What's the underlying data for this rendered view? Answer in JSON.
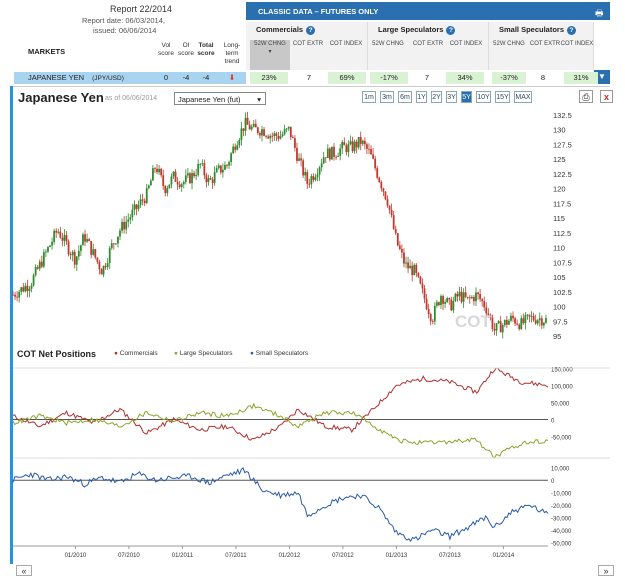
{
  "report": {
    "title": "Report 22/2014",
    "date": "Report date: 06/03/2014,",
    "issued": "issued: 06/06/2014"
  },
  "markets_header": "MARKETS",
  "score_headers": {
    "vol": "Vol score",
    "oi": "OI score",
    "total": "Total score",
    "trend": "Long-term trend"
  },
  "classic_title": "CLASSIC DATA – FUTURES ONLY",
  "groups": [
    {
      "name": "Commercials",
      "cols": [
        "52W CHNG",
        "COT EXTR",
        "COT INDEX"
      ]
    },
    {
      "name": "Large Speculators",
      "cols": [
        "52W CHNG",
        "COT EXTR",
        "COT INDEX"
      ]
    },
    {
      "name": "Small Speculators",
      "cols": [
        "52W CHNG",
        "COT EXTR",
        "COT INDEX"
      ]
    }
  ],
  "row": {
    "market": "JAPANESE YEN",
    "symbol": "(JPY/USD)",
    "vol": "0",
    "oi": "-4",
    "total": "-4",
    "values": [
      "23%",
      "7",
      "69%",
      "-17%",
      "7",
      "34%",
      "-37%",
      "8",
      "31%"
    ]
  },
  "chart_header": {
    "title": "Japanese Yen",
    "as_of": "as of 06/06/2014",
    "select": "Japanese Yen (fut)",
    "ranges": [
      "1m",
      "3m",
      "6m",
      "1Y",
      "2Y",
      "3Y",
      "5Y",
      "10Y",
      "15Y",
      "MAX"
    ],
    "active_range": "5Y",
    "close": "x"
  },
  "cot_title": "COT Net Positions",
  "legend": [
    "Commercials",
    "Large Speculators",
    "Small Speculators"
  ],
  "colors": {
    "commercials": "#b03030",
    "large": "#8aa52c",
    "small": "#2a5aa8",
    "up": "#2e8b2e",
    "down": "#c0392b"
  },
  "watermark": "COT",
  "nav": {
    "prev": "«",
    "next": "»"
  },
  "chart_data": [
    {
      "type": "candlestick",
      "title": "Japanese Yen",
      "ylim": [
        95,
        133
      ],
      "yticks": [
        95,
        97.5,
        100,
        102.5,
        105,
        107.5,
        110,
        112.5,
        115,
        117.5,
        120,
        122.5,
        125,
        127.5,
        130,
        132.5
      ],
      "ytick_labels": [
        "95",
        "97.5",
        "100",
        "102.5",
        "105",
        "107.5",
        "110",
        "112.5",
        "115",
        "117.5",
        "120",
        "122.5",
        "125",
        "127.5",
        "130",
        "132.5"
      ],
      "x_start": "2009-06",
      "x_end": "2014-06",
      "close_path": [
        [
          "2009-06",
          102
        ],
        [
          "2009-08",
          104
        ],
        [
          "2009-10",
          110
        ],
        [
          "2009-11",
          113
        ],
        [
          "2010-01",
          108
        ],
        [
          "2010-02",
          112
        ],
        [
          "2010-04",
          106
        ],
        [
          "2010-05",
          110
        ],
        [
          "2010-06",
          113
        ],
        [
          "2010-08",
          117
        ],
        [
          "2010-09",
          119
        ],
        [
          "2010-10",
          124
        ],
        [
          "2010-11",
          120
        ],
        [
          "2010-12",
          122
        ],
        [
          "2011-01",
          121
        ],
        [
          "2011-02",
          122
        ],
        [
          "2011-03",
          124
        ],
        [
          "2011-04",
          121
        ],
        [
          "2011-05",
          123
        ],
        [
          "2011-06",
          124
        ],
        [
          "2011-07",
          128
        ],
        [
          "2011-08",
          131
        ],
        [
          "2011-09",
          130
        ],
        [
          "2011-10",
          130
        ],
        [
          "2011-11",
          129
        ],
        [
          "2011-12",
          129
        ],
        [
          "2012-01",
          130
        ],
        [
          "2012-02",
          125
        ],
        [
          "2012-03",
          121
        ],
        [
          "2012-04",
          123
        ],
        [
          "2012-05",
          126
        ],
        [
          "2012-06",
          126
        ],
        [
          "2012-07",
          127
        ],
        [
          "2012-08",
          127
        ],
        [
          "2012-09",
          128
        ],
        [
          "2012-10",
          126
        ],
        [
          "2012-11",
          122
        ],
        [
          "2012-12",
          118
        ],
        [
          "2013-01",
          111
        ],
        [
          "2013-02",
          107
        ],
        [
          "2013-03",
          106
        ],
        [
          "2013-04",
          102
        ],
        [
          "2013-05",
          98
        ],
        [
          "2013-06",
          102
        ],
        [
          "2013-07",
          100
        ],
        [
          "2013-08",
          102
        ],
        [
          "2013-09",
          101
        ],
        [
          "2013-10",
          102
        ],
        [
          "2013-11",
          100
        ],
        [
          "2013-12",
          96
        ],
        [
          "2014-01",
          97
        ],
        [
          "2014-02",
          98
        ],
        [
          "2014-03",
          97
        ],
        [
          "2014-04",
          98
        ],
        [
          "2014-05",
          98
        ],
        [
          "2014-06",
          97.6
        ]
      ]
    },
    {
      "type": "line",
      "title": "COT Net Positions",
      "ylim": [
        -60000,
        180000
      ],
      "yticks": [
        -50000,
        0,
        50000,
        100000,
        150000
      ],
      "ytick_labels": [
        "-50,000",
        "0",
        "50,000",
        "100,000",
        "150,000"
      ],
      "series": [
        {
          "name": "Commercials",
          "values": [
            [
              "2009-06",
              10000
            ],
            [
              "2009-09",
              -20000
            ],
            [
              "2009-12",
              20000
            ],
            [
              "2010-03",
              -10000
            ],
            [
              "2010-06",
              30000
            ],
            [
              "2010-09",
              -40000
            ],
            [
              "2010-12",
              0
            ],
            [
              "2011-03",
              -30000
            ],
            [
              "2011-06",
              -20000
            ],
            [
              "2011-09",
              -60000
            ],
            [
              "2011-12",
              -20000
            ],
            [
              "2012-02",
              30000
            ],
            [
              "2012-05",
              -20000
            ],
            [
              "2012-08",
              -30000
            ],
            [
              "2012-10",
              20000
            ],
            [
              "2013-01",
              100000
            ],
            [
              "2013-04",
              120000
            ],
            [
              "2013-07",
              110000
            ],
            [
              "2013-10",
              80000
            ],
            [
              "2013-12",
              150000
            ],
            [
              "2014-03",
              110000
            ],
            [
              "2014-06",
              100000
            ]
          ]
        },
        {
          "name": "Large Speculators",
          "values": [
            [
              "2009-06",
              -10000
            ],
            [
              "2009-09",
              10000
            ],
            [
              "2009-12",
              -10000
            ],
            [
              "2010-03",
              0
            ],
            [
              "2010-06",
              -20000
            ],
            [
              "2010-09",
              20000
            ],
            [
              "2010-12",
              -5000
            ],
            [
              "2011-03",
              20000
            ],
            [
              "2011-06",
              10000
            ],
            [
              "2011-09",
              40000
            ],
            [
              "2011-12",
              10000
            ],
            [
              "2012-02",
              -20000
            ],
            [
              "2012-05",
              20000
            ],
            [
              "2012-08",
              20000
            ],
            [
              "2012-10",
              -10000
            ],
            [
              "2013-01",
              -60000
            ],
            [
              "2013-04",
              -70000
            ],
            [
              "2013-07",
              -65000
            ],
            [
              "2013-10",
              -60000
            ],
            [
              "2013-12",
              -110000
            ],
            [
              "2014-03",
              -70000
            ],
            [
              "2014-06",
              -60000
            ]
          ]
        }
      ]
    },
    {
      "type": "line",
      "title": "",
      "ylim": [
        -52000,
        13000
      ],
      "yticks": [
        -50000,
        -40000,
        -30000,
        -20000,
        -10000,
        0,
        10000
      ],
      "ytick_labels": [
        "-50,000",
        "-40,000",
        "-30,000",
        "-20,000",
        "-10,000",
        "0",
        "10,000"
      ],
      "series": [
        {
          "name": "Small Speculators",
          "values": [
            [
              "2009-06",
              0
            ],
            [
              "2009-08",
              5000
            ],
            [
              "2009-10",
              0
            ],
            [
              "2009-12",
              3000
            ],
            [
              "2010-02",
              -3000
            ],
            [
              "2010-04",
              2000
            ],
            [
              "2010-06",
              -2000
            ],
            [
              "2010-08",
              5000
            ],
            [
              "2010-10",
              0
            ],
            [
              "2010-12",
              2000
            ],
            [
              "2011-02",
              3000
            ],
            [
              "2011-04",
              -2000
            ],
            [
              "2011-06",
              4000
            ],
            [
              "2011-08",
              8000
            ],
            [
              "2011-10",
              -8000
            ],
            [
              "2011-12",
              -12000
            ],
            [
              "2012-02",
              -10000
            ],
            [
              "2012-03",
              -28000
            ],
            [
              "2012-05",
              -20000
            ],
            [
              "2012-07",
              -14000
            ],
            [
              "2012-09",
              -12000
            ],
            [
              "2012-11",
              -22000
            ],
            [
              "2013-01",
              -42000
            ],
            [
              "2013-03",
              -48000
            ],
            [
              "2013-05",
              -40000
            ],
            [
              "2013-07",
              -45000
            ],
            [
              "2013-09",
              -38000
            ],
            [
              "2013-11",
              -30000
            ],
            [
              "2013-12",
              -38000
            ],
            [
              "2014-02",
              -25000
            ],
            [
              "2014-04",
              -20000
            ],
            [
              "2014-06",
              -28000
            ]
          ]
        }
      ]
    }
  ],
  "x_tick_labels": [
    "01/2010",
    "07/2010",
    "01/2011",
    "07/2011",
    "01/2012",
    "07/2012",
    "01/2013",
    "07/2013",
    "01/2014"
  ],
  "x_tick_dates": [
    "2010-01",
    "2010-07",
    "2011-01",
    "2011-07",
    "2012-01",
    "2012-07",
    "2013-01",
    "2013-07",
    "2014-01"
  ]
}
